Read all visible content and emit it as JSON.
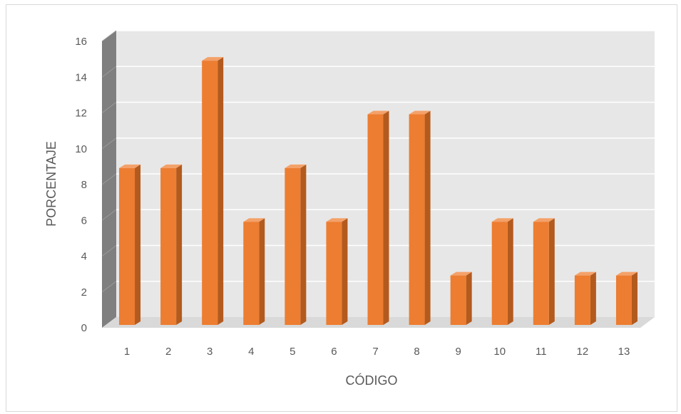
{
  "chart_data": {
    "type": "bar",
    "style": "3d-column",
    "title": "",
    "xlabel": "CÓDIGO",
    "ylabel": "PORCENTAJE",
    "categories": [
      "1",
      "2",
      "3",
      "4",
      "5",
      "6",
      "7",
      "8",
      "9",
      "10",
      "11",
      "12",
      "13"
    ],
    "values": [
      9,
      9,
      15,
      6,
      9,
      6,
      12,
      12,
      3,
      6,
      6,
      3,
      3
    ],
    "ylim": [
      0,
      16
    ],
    "yticks": [
      0,
      2,
      4,
      6,
      8,
      10,
      12,
      14,
      16
    ],
    "grid": true,
    "legend": "none",
    "colors": {
      "bar_front": "#ED7D31",
      "bar_side": "#B35A1E",
      "bar_top": "#F4A169",
      "back_wall": "#E7E7E7",
      "side_wall": "#7F7F7F",
      "floor": "#D9D9D9",
      "gridline": "#FFFFFF",
      "text": "#595959"
    }
  }
}
